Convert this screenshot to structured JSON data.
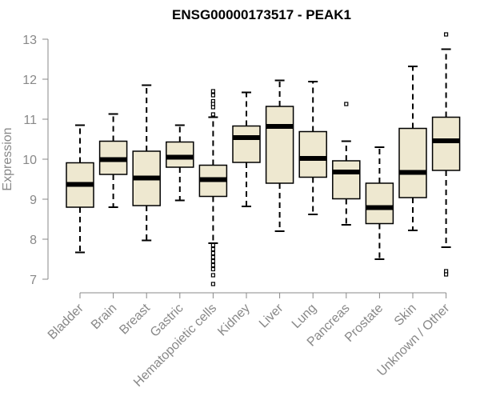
{
  "chart_data": {
    "type": "boxplot",
    "title": "ENSG00000173517 - PEAK1",
    "xlabel": "",
    "ylabel": "Expression",
    "ylim": [
      6.8,
      13.2
    ],
    "yticks": [
      7,
      8,
      9,
      10,
      11,
      12,
      13
    ],
    "grid": false,
    "box_color": "#EEE8D0",
    "categories": [
      "Bladder",
      "Brain",
      "Breast",
      "Gastric",
      "Hematopoietic cells",
      "Kidney",
      "Liver",
      "Lung",
      "Pancreas",
      "Prostate",
      "Skin",
      "Unknown / Other"
    ],
    "boxes": [
      {
        "name": "Bladder",
        "whisker_low": 7.67,
        "q1": 8.8,
        "median": 9.37,
        "q3": 9.91,
        "whisker_high": 10.85,
        "outliers": []
      },
      {
        "name": "Brain",
        "whisker_low": 8.8,
        "q1": 9.62,
        "median": 9.99,
        "q3": 10.45,
        "whisker_high": 11.13,
        "outliers": []
      },
      {
        "name": "Breast",
        "whisker_low": 7.97,
        "q1": 8.84,
        "median": 9.53,
        "q3": 10.2,
        "whisker_high": 11.85,
        "outliers": []
      },
      {
        "name": "Gastric",
        "whisker_low": 8.97,
        "q1": 9.8,
        "median": 10.05,
        "q3": 10.43,
        "whisker_high": 10.85,
        "outliers": []
      },
      {
        "name": "Hematopoietic cells",
        "whisker_low": 7.9,
        "q1": 9.07,
        "median": 9.49,
        "q3": 9.85,
        "whisker_high": 11.05,
        "outliers": [
          11.7,
          11.6,
          11.45,
          11.38,
          11.3,
          11.12,
          7.85,
          7.75,
          7.65,
          7.55,
          7.45,
          7.35,
          7.25,
          7.1,
          6.88
        ]
      },
      {
        "name": "Kidney",
        "whisker_low": 8.82,
        "q1": 9.92,
        "median": 10.54,
        "q3": 10.83,
        "whisker_high": 11.67,
        "outliers": []
      },
      {
        "name": "Liver",
        "whisker_low": 8.2,
        "q1": 9.4,
        "median": 10.82,
        "q3": 11.32,
        "whisker_high": 11.97,
        "outliers": []
      },
      {
        "name": "Lung",
        "whisker_low": 8.62,
        "q1": 9.55,
        "median": 10.02,
        "q3": 10.69,
        "whisker_high": 11.94,
        "outliers": []
      },
      {
        "name": "Pancreas",
        "whisker_low": 8.36,
        "q1": 9.01,
        "median": 9.68,
        "q3": 9.96,
        "whisker_high": 10.45,
        "outliers": [
          11.38
        ]
      },
      {
        "name": "Prostate",
        "whisker_low": 7.5,
        "q1": 8.39,
        "median": 8.79,
        "q3": 9.4,
        "whisker_high": 10.3,
        "outliers": []
      },
      {
        "name": "Skin",
        "whisker_low": 8.22,
        "q1": 9.04,
        "median": 9.67,
        "q3": 10.77,
        "whisker_high": 12.32,
        "outliers": []
      },
      {
        "name": "Unknown / Other",
        "whisker_low": 7.8,
        "q1": 9.72,
        "median": 10.46,
        "q3": 11.05,
        "whisker_high": 12.75,
        "outliers": [
          13.12,
          7.2,
          7.12
        ]
      }
    ]
  }
}
